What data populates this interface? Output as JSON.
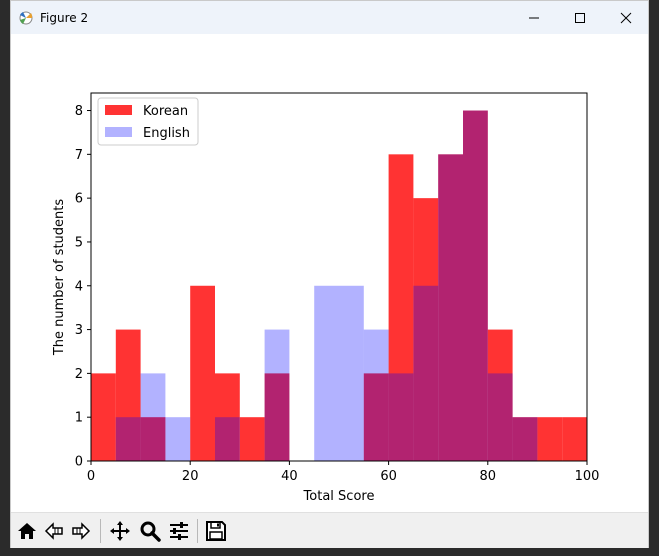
{
  "window": {
    "title": "Figure 2"
  },
  "icons": {
    "app": "matplotlib-figure-icon",
    "minimize": "minimize-icon",
    "maximize": "maximize-icon",
    "close": "close-icon"
  },
  "toolbar": {
    "tools": [
      "home-icon",
      "back-arrow-icon",
      "forward-arrow-icon",
      "pan-icon",
      "zoom-icon",
      "configure-subplots-icon",
      "save-icon"
    ]
  },
  "chart_data": {
    "type": "bar",
    "subtype": "histogram",
    "xlabel": "Total Score",
    "ylabel": "The number of students",
    "xlim": [
      0,
      100
    ],
    "ylim": [
      0,
      8.4
    ],
    "xticks": [
      0,
      20,
      40,
      60,
      80,
      100
    ],
    "yticks": [
      0,
      1,
      2,
      3,
      4,
      5,
      6,
      7,
      8
    ],
    "bin_edges": [
      0,
      5,
      10,
      15,
      20,
      25,
      30,
      35,
      40,
      45,
      50,
      55,
      60,
      65,
      70,
      75,
      80,
      85,
      90,
      95,
      100
    ],
    "series": [
      {
        "name": "Korean",
        "color": "#ff0000",
        "alpha": 0.8,
        "values": [
          2,
          3,
          1,
          0,
          4,
          2,
          1,
          2,
          0,
          0,
          0,
          2,
          7,
          6,
          7,
          8,
          3,
          1,
          1,
          1
        ]
      },
      {
        "name": "English",
        "color": "#0000ff",
        "alpha": 0.3,
        "values": [
          0,
          1,
          2,
          1,
          0,
          1,
          0,
          3,
          0,
          4,
          4,
          3,
          2,
          4,
          7,
          8,
          2,
          1,
          0,
          0
        ]
      }
    ],
    "legend": "top-left",
    "grid": false
  }
}
